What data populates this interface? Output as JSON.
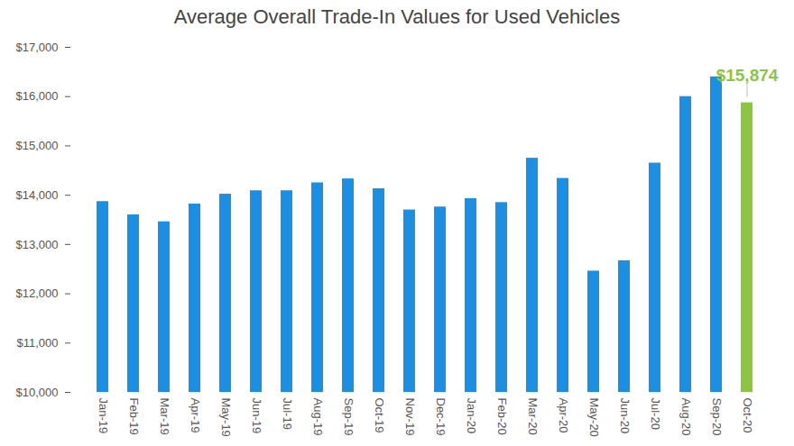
{
  "chart_data": {
    "type": "bar",
    "title": "Average Overall Trade-In Values for Used Vehicles",
    "categories": [
      "Jan-19",
      "Feb-19",
      "Mar-19",
      "Apr-19",
      "May-19",
      "Jun-19",
      "Jul-19",
      "Aug-19",
      "Sep-19",
      "Oct-19",
      "Nov-19",
      "Dec-19",
      "Jan-20",
      "Feb-20",
      "Mar-20",
      "Apr-20",
      "May-20",
      "Jun-20",
      "Jul-20",
      "Aug-20",
      "Sep-20",
      "Oct-20"
    ],
    "values": [
      13870,
      13600,
      13460,
      13820,
      14020,
      14090,
      14090,
      14250,
      14330,
      14130,
      13700,
      13760,
      13930,
      13850,
      14750,
      14340,
      12460,
      12670,
      14650,
      16000,
      16400,
      15874
    ],
    "value_labels": [
      null,
      null,
      null,
      null,
      null,
      null,
      null,
      null,
      null,
      null,
      null,
      null,
      null,
      null,
      null,
      null,
      null,
      null,
      null,
      null,
      null,
      "$15,874"
    ],
    "colors": [
      "#1a8fe3",
      "#1a8fe3",
      "#1a8fe3",
      "#1a8fe3",
      "#1a8fe3",
      "#1a8fe3",
      "#1a8fe3",
      "#1a8fe3",
      "#1a8fe3",
      "#1a8fe3",
      "#1a8fe3",
      "#1a8fe3",
      "#1a8fe3",
      "#1a8fe3",
      "#1a8fe3",
      "#1a8fe3",
      "#1a8fe3",
      "#1a8fe3",
      "#1a8fe3",
      "#1a8fe3",
      "#1a8fe3",
      "#8cc63f"
    ],
    "ylim": [
      10000,
      17000
    ],
    "yticks": [
      {
        "value": 10000,
        "label": "$10,000"
      },
      {
        "value": 11000,
        "label": "$11,000"
      },
      {
        "value": 12000,
        "label": "$12,000"
      },
      {
        "value": 13000,
        "label": "$13,000"
      },
      {
        "value": 14000,
        "label": "$14,000"
      },
      {
        "value": 15000,
        "label": "$15,000"
      },
      {
        "value": 16000,
        "label": "$16,000"
      },
      {
        "value": 17000,
        "label": "$17,000"
      }
    ],
    "grid": false
  }
}
